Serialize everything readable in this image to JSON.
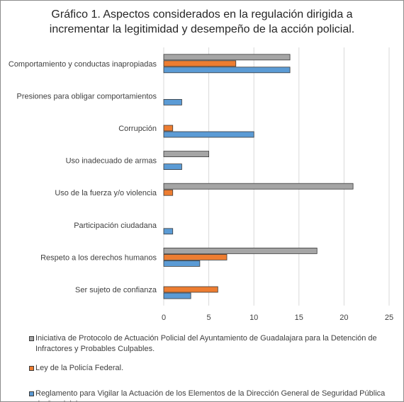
{
  "chart_data": {
    "type": "bar",
    "orientation": "horizontal",
    "title_lines": [
      "Gráfico 1. Aspectos considerados en la regulación dirigida a",
      "incrementar la legitimidad y desempeño de la acción policial."
    ],
    "categories": [
      "Comportamiento y conductas inapropiadas",
      "Presiones para obligar comportamientos",
      "Corrupción",
      "Uso inadecuado de armas",
      "Uso de la fuerza y/o violencia",
      "Participación ciudadana",
      "Respeto a los derechos humanos",
      "Ser sujeto de confianza"
    ],
    "series": [
      {
        "name": "Iniciativa de Protocolo de Actuación Policial del Ayuntamiento de Guadalajara para la Detención de Infractores y Probables Culpables.",
        "color": "#a5a5a5",
        "values": [
          14,
          0,
          0,
          5,
          21,
          0,
          17,
          0
        ]
      },
      {
        "name": "Ley de la Policía Federal.",
        "color": "#ed7d31",
        "values": [
          8,
          0,
          1,
          0,
          1,
          0,
          7,
          6
        ]
      },
      {
        "name": "Reglamento para Vigilar la Actuación de los Elementos de la Dirección General de Seguridad Pública de Guadalajara.",
        "color": "#5b9bd5",
        "values": [
          14,
          2,
          10,
          2,
          0,
          1,
          4,
          3
        ]
      }
    ],
    "xlim": [
      0,
      25
    ],
    "xticks": [
      0,
      5,
      10,
      15,
      20,
      25
    ],
    "grid": true,
    "legend_position": "bottom"
  }
}
